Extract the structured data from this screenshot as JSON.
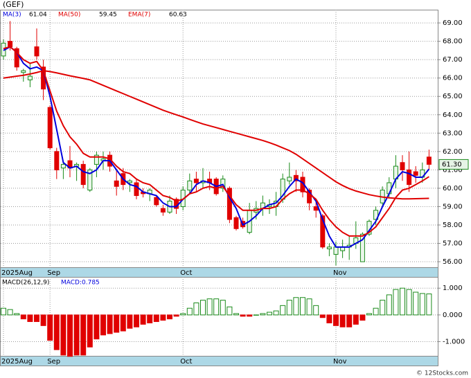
{
  "chart_data": [
    {
      "type": "candlestick",
      "title": "(GEF)",
      "categories": [
        "2025Aug",
        null,
        null,
        null,
        null,
        null,
        null,
        "Sep",
        null,
        null,
        null,
        null,
        null,
        null,
        null,
        null,
        null,
        null,
        null,
        null,
        null,
        null,
        null,
        null,
        null,
        null,
        null,
        "Oct",
        null,
        null,
        null,
        null,
        null,
        null,
        null,
        null,
        null,
        null,
        null,
        null,
        null,
        null,
        null,
        null,
        null,
        null,
        null,
        null,
        null,
        null,
        "Nov",
        null,
        null,
        null,
        null,
        null,
        null,
        null,
        null,
        null,
        null,
        null,
        null,
        null,
        null
      ],
      "open": [
        67.2,
        68.0,
        67.6,
        66.3,
        65.9,
        67.7,
        66.6,
        64.4,
        62.0,
        61.1,
        61.5,
        61.2,
        61.3,
        59.9,
        61.3,
        61.5,
        61.8,
        60.4,
        60.8,
        60.3,
        60.3,
        59.8,
        59.7,
        59.5,
        58.9,
        58.7,
        59.4,
        59.0,
        59.9,
        60.5,
        60.3,
        60.5,
        60.5,
        60.0,
        60.0,
        58.4,
        58.2,
        57.6,
        58.7,
        58.9,
        59.0,
        59.0,
        59.4,
        60.4,
        60.7,
        60.6,
        59.9,
        59.0,
        58.5,
        56.7,
        56.4,
        56.6,
        56.8,
        57.0,
        56.0,
        57.5,
        58.3,
        59.2,
        59.7,
        60.5,
        61.4,
        61.0,
        60.9,
        60.6,
        61.7
      ],
      "high": [
        68.1,
        69.1,
        67.7,
        66.5,
        66.8,
        68.7,
        67.0,
        64.5,
        62.2,
        61.4,
        62.3,
        61.4,
        61.5,
        61.1,
        62.0,
        62.0,
        62.0,
        61.0,
        61.1,
        60.5,
        60.5,
        60.0,
        60.0,
        59.6,
        59.1,
        59.6,
        59.5,
        60.1,
        60.8,
        60.9,
        61.1,
        60.9,
        60.6,
        60.7,
        60.1,
        58.5,
        58.4,
        59.2,
        59.3,
        59.6,
        59.4,
        59.8,
        60.8,
        61.4,
        61.0,
        60.9,
        60.0,
        59.3,
        58.6,
        57.0,
        57.1,
        57.2,
        57.4,
        58.2,
        57.6,
        58.3,
        59.0,
        60.1,
        60.6,
        61.8,
        61.8,
        62.0,
        61.2,
        61.4,
        62.1
      ],
      "low": [
        67.0,
        67.5,
        66.4,
        65.8,
        65.5,
        67.0,
        64.8,
        62.1,
        60.5,
        60.5,
        60.6,
        60.4,
        60.0,
        59.8,
        60.6,
        61.0,
        60.9,
        59.6,
        59.9,
        59.8,
        59.4,
        59.5,
        59.3,
        59.0,
        58.5,
        58.6,
        58.6,
        58.8,
        59.7,
        59.8,
        60.0,
        59.9,
        59.6,
        59.8,
        58.1,
        57.7,
        57.8,
        57.5,
        58.3,
        58.5,
        58.6,
        58.5,
        59.2,
        60.2,
        59.8,
        59.5,
        58.8,
        58.4,
        56.7,
        56.3,
        55.8,
        56.2,
        56.1,
        56.7,
        56.0,
        57.4,
        58.0,
        59.0,
        59.5,
        60.0,
        60.4,
        59.8,
        60.3,
        60.3,
        61.0
      ],
      "close": [
        67.9,
        67.7,
        66.6,
        66.4,
        66.1,
        67.2,
        65.4,
        62.2,
        61.0,
        61.3,
        61.1,
        61.3,
        60.2,
        61.0,
        61.8,
        61.6,
        61.2,
        60.1,
        60.2,
        60.4,
        59.6,
        59.7,
        59.9,
        59.1,
        58.7,
        59.3,
        58.9,
        59.9,
        60.4,
        60.3,
        60.4,
        60.3,
        59.7,
        60.5,
        58.3,
        57.8,
        57.9,
        58.8,
        58.9,
        59.2,
        59.1,
        59.3,
        60.5,
        60.6,
        60.4,
        59.8,
        59.2,
        58.8,
        56.8,
        56.8,
        56.8,
        56.8,
        56.9,
        57.3,
        57.5,
        58.2,
        58.8,
        59.9,
        60.3,
        61.2,
        61.0,
        60.2,
        60.7,
        61.0,
        61.3
      ],
      "last_close_label": "61.30",
      "up_color": "#1a8a1a",
      "down_color": "#e00000",
      "series": [
        {
          "name": "MA(3)",
          "color": "#0000dd",
          "values": [
            67.5,
            67.7,
            67.4,
            66.8,
            66.5,
            66.6,
            66.4,
            65.0,
            63.2,
            61.4,
            61.1,
            61.2,
            60.9,
            60.8,
            61.0,
            61.5,
            61.5,
            61.0,
            60.5,
            60.2,
            60.1,
            59.8,
            59.7,
            59.6,
            59.2,
            59.0,
            59.0,
            59.4,
            59.7,
            60.2,
            60.4,
            60.3,
            60.1,
            60.2,
            59.5,
            58.9,
            58.0,
            58.2,
            58.5,
            58.9,
            59.1,
            59.2,
            59.6,
            60.1,
            60.5,
            60.3,
            59.8,
            59.3,
            58.3,
            57.4,
            56.8,
            56.8,
            56.8,
            57.0,
            57.2,
            57.7,
            58.2,
            59.0,
            59.7,
            60.5,
            60.9,
            60.8,
            60.6,
            60.6,
            61.04
          ]
        },
        {
          "name": "MA(50)",
          "color": "#e00000",
          "values": [
            66.0,
            66.05,
            66.1,
            66.15,
            66.22,
            66.3,
            66.4,
            66.35,
            66.28,
            66.2,
            66.12,
            66.05,
            65.98,
            65.9,
            65.75,
            65.6,
            65.45,
            65.3,
            65.15,
            65.0,
            64.85,
            64.7,
            64.55,
            64.4,
            64.25,
            64.12,
            64.0,
            63.88,
            63.75,
            63.62,
            63.5,
            63.4,
            63.3,
            63.2,
            63.1,
            63.0,
            62.9,
            62.8,
            62.7,
            62.6,
            62.48,
            62.35,
            62.2,
            62.05,
            61.85,
            61.6,
            61.35,
            61.1,
            60.85,
            60.6,
            60.35,
            60.15,
            59.98,
            59.85,
            59.75,
            59.65,
            59.58,
            59.52,
            59.48,
            59.45,
            59.42,
            59.42,
            59.43,
            59.44,
            59.45
          ]
        },
        {
          "name": "EMA(7)",
          "color": "#e00000",
          "values": [
            67.6,
            67.7,
            67.4,
            67.0,
            66.8,
            66.9,
            66.4,
            65.3,
            64.2,
            63.4,
            62.8,
            62.4,
            61.9,
            61.7,
            61.7,
            61.7,
            61.6,
            61.2,
            60.9,
            60.8,
            60.5,
            60.3,
            60.2,
            59.9,
            59.6,
            59.5,
            59.3,
            59.4,
            59.7,
            59.8,
            60.0,
            60.1,
            60.0,
            60.1,
            59.6,
            59.1,
            58.8,
            58.8,
            58.8,
            58.9,
            58.9,
            59.0,
            59.4,
            59.7,
            59.9,
            59.9,
            59.7,
            59.4,
            58.8,
            58.3,
            57.9,
            57.6,
            57.4,
            57.4,
            57.4,
            57.6,
            57.9,
            58.4,
            58.9,
            59.5,
            59.9,
            60.0,
            60.2,
            60.4,
            60.63
          ]
        }
      ],
      "ylim": [
        55.7,
        69.72
      ],
      "yticks": [
        {
          "value": 56,
          "label": "56.00"
        },
        {
          "value": 57,
          "label": "57.00"
        },
        {
          "value": 58,
          "label": "58.00"
        },
        {
          "value": 59,
          "label": "59.00"
        },
        {
          "value": 60,
          "label": "60.00"
        },
        {
          "value": 61,
          "label": "61.00"
        },
        {
          "value": 62,
          "label": "62.00"
        },
        {
          "value": 63,
          "label": "63.00"
        },
        {
          "value": 64,
          "label": "64.00"
        },
        {
          "value": 65,
          "label": "65.00"
        },
        {
          "value": 66,
          "label": "66.00"
        },
        {
          "value": 67,
          "label": "67.00"
        },
        {
          "value": 68,
          "label": "68.00"
        },
        {
          "value": 69,
          "label": "69.00"
        }
      ],
      "grid": true
    },
    {
      "type": "bar",
      "title": "MACD(26,12,9)",
      "readout": "MACD:0.785",
      "values": [
        0.25,
        0.2,
        0.05,
        -0.15,
        -0.25,
        -0.25,
        -0.4,
        -0.95,
        -1.3,
        -1.5,
        -1.55,
        -1.5,
        -1.5,
        -1.2,
        -0.9,
        -0.75,
        -0.7,
        -0.65,
        -0.6,
        -0.5,
        -0.45,
        -0.35,
        -0.3,
        -0.25,
        -0.2,
        -0.15,
        -0.05,
        0.05,
        0.25,
        0.45,
        0.55,
        0.6,
        0.6,
        0.55,
        0.3,
        0.05,
        -0.05,
        -0.05,
        0.0,
        0.05,
        0.1,
        0.15,
        0.35,
        0.55,
        0.65,
        0.65,
        0.6,
        0.35,
        -0.1,
        -0.3,
        -0.4,
        -0.45,
        -0.45,
        -0.35,
        -0.2,
        0.05,
        0.25,
        0.55,
        0.75,
        0.95,
        1.0,
        0.95,
        0.85,
        0.8,
        0.785
      ],
      "up_color": "#1a8a1a",
      "down_color": "#e00000",
      "ylim": [
        -1.53,
        1.42
      ],
      "yticks": [
        {
          "value": 1,
          "label": "1.000"
        },
        {
          "value": 0,
          "label": "0.000"
        },
        {
          "value": -1,
          "label": "-1.000"
        }
      ],
      "grid": true
    }
  ],
  "footer": "© 12Stocks.com"
}
